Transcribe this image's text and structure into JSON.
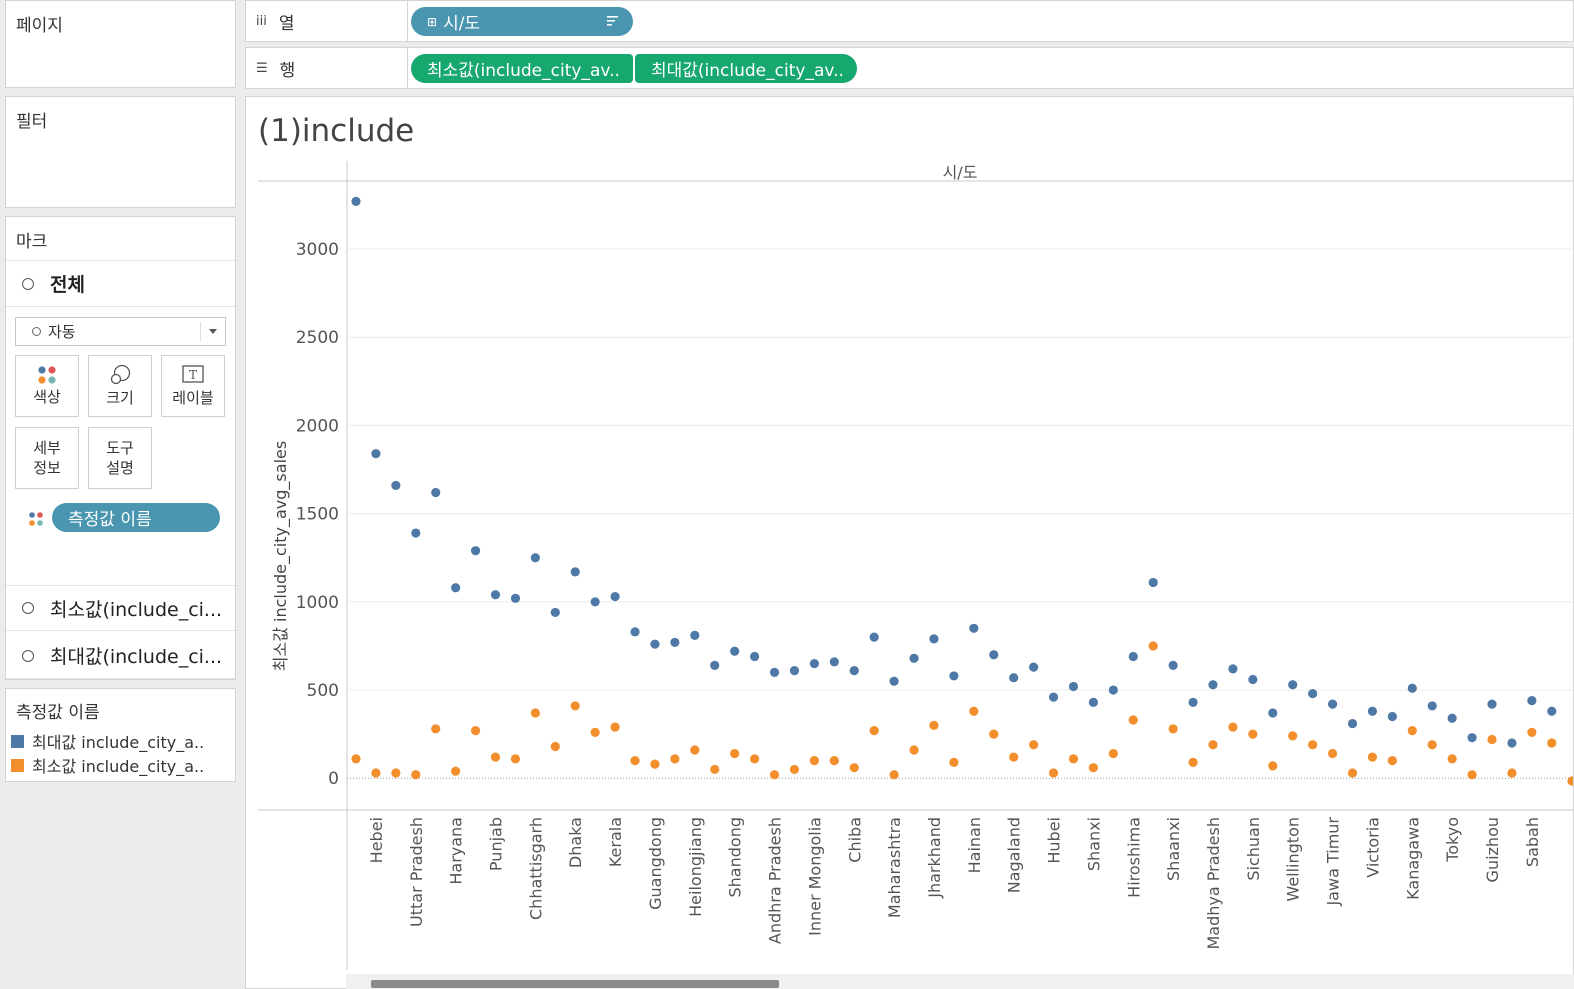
{
  "panes": {
    "pages": "페이지",
    "filters": "필터",
    "marks": "마크",
    "legend_title": "측정값 이름"
  },
  "marks": {
    "all": "전체",
    "mark_type": "자동",
    "buttons": {
      "color": "색상",
      "size": "크기",
      "label": "레이블",
      "detail_line1": "세부",
      "detail_line2": "정보",
      "tooltip_line1": "도구",
      "tooltip_line2": "설명"
    },
    "measure_pill": "측정값 이름",
    "min_card": "최소값(include_ci...",
    "max_card": "최대값(include_ci..."
  },
  "legend": {
    "items": [
      {
        "label": "최대값 include_city_a..",
        "color": "#4e79a7"
      },
      {
        "label": "최소값 include_city_a..",
        "color": "#f28e2b"
      }
    ]
  },
  "shelves": {
    "columns_label": "열",
    "rows_label": "행",
    "columns_pill": "시/도",
    "rows_pill_1": "최소값(include_city_av..",
    "rows_pill_2": "최대값(include_city_av.."
  },
  "view": {
    "title": "(1)include"
  },
  "chart_data": {
    "type": "scatter",
    "column_header": "시/도",
    "ylabel": "최소값 include_city_avg_sales",
    "ylim": [
      -180,
      3380
    ],
    "yticks": [
      0,
      500,
      1000,
      1500,
      2000,
      2500,
      3000
    ],
    "x_tick_labels": [
      "Hebei",
      "Uttar Pradesh",
      "Haryana",
      "Punjab",
      "Chhattisgarh",
      "Dhaka",
      "Kerala",
      "Guangdong",
      "Heilongjiang",
      "Shandong",
      "Andhra Pradesh",
      "Inner Mongolia",
      "Chiba",
      "Maharashtra",
      "Jharkhand",
      "Hainan",
      "Nagaland",
      "Hubei",
      "Shanxi",
      "Hiroshima",
      "Shaanxi",
      "Madhya Pradesh",
      "Sichuan",
      "Wellington",
      "Jawa Timur",
      "Victoria",
      "Kanagawa",
      "Tokyo",
      "Guizhou",
      "Sabah"
    ],
    "series": [
      {
        "color": "#4e79a7",
        "values": [
          3270,
          1840,
          1660,
          1390,
          1620,
          1080,
          1290,
          1040,
          1020,
          1250,
          940,
          1170,
          1000,
          1030,
          830,
          760,
          770,
          810,
          640,
          720,
          690,
          600,
          610,
          650,
          660,
          610,
          800,
          550,
          680,
          790,
          580,
          850,
          700,
          570,
          630,
          460,
          520,
          430,
          500,
          690,
          1110,
          640,
          430,
          530,
          620,
          560,
          370,
          530,
          480,
          420,
          310,
          380,
          350,
          510,
          410,
          340,
          230,
          420,
          200,
          440,
          380
        ]
      },
      {
        "color": "#f28e2b",
        "values": [
          110,
          30,
          30,
          20,
          280,
          40,
          270,
          120,
          110,
          370,
          180,
          410,
          260,
          290,
          100,
          80,
          110,
          160,
          50,
          140,
          110,
          20,
          50,
          100,
          100,
          60,
          270,
          20,
          160,
          300,
          90,
          380,
          250,
          120,
          190,
          30,
          110,
          60,
          140,
          330,
          750,
          280,
          90,
          190,
          290,
          250,
          70,
          240,
          190,
          140,
          30,
          120,
          100,
          270,
          190,
          110,
          20,
          220,
          30,
          260,
          200
        ]
      }
    ]
  }
}
